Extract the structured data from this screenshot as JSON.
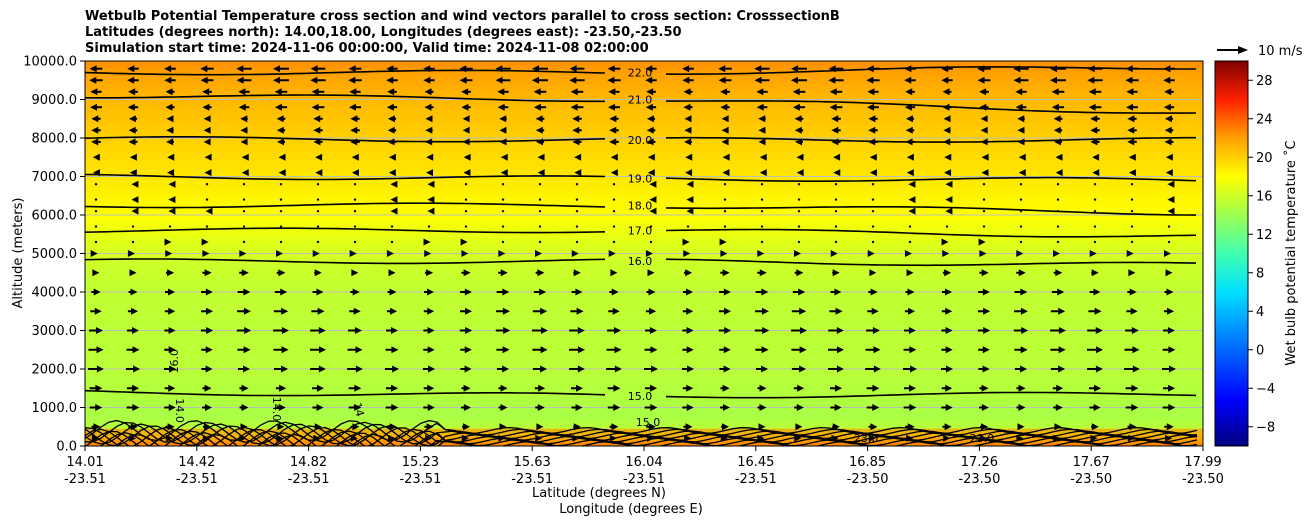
{
  "chart_data": {
    "type": "heatmap",
    "title_lines": [
      "Wetbulb Potential Temperature cross section and wind vectors parallel to cross section: CrosssectionB",
      "Latitudes (degrees north): 14.00,18.00, Longitudes (degrees east): -23.50,-23.50",
      "Simulation start time: 2024-11-06 00:00:00, Valid time: 2024-11-08 02:00:00"
    ],
    "ylabel": "Altitude (meters)",
    "xlabel_lines": [
      "Latitude (degrees N)",
      "Longitude (degrees E)"
    ],
    "ylim": [
      0,
      10000
    ],
    "y_ticks": [
      {
        "value": 0,
        "label": "0.0"
      },
      {
        "value": 1000,
        "label": "1000.0"
      },
      {
        "value": 2000,
        "label": "2000.0"
      },
      {
        "value": 3000,
        "label": "3000.0"
      },
      {
        "value": 4000,
        "label": "4000.0"
      },
      {
        "value": 5000,
        "label": "5000.0"
      },
      {
        "value": 6000,
        "label": "6000.0"
      },
      {
        "value": 7000,
        "label": "7000.0"
      },
      {
        "value": 8000,
        "label": "8000.0"
      },
      {
        "value": 9000,
        "label": "9000.0"
      },
      {
        "value": 10000,
        "label": "10000.0"
      }
    ],
    "x_ticks": [
      {
        "lat": "14.01",
        "lon": "-23.51"
      },
      {
        "lat": "14.42",
        "lon": "-23.51"
      },
      {
        "lat": "14.82",
        "lon": "-23.51"
      },
      {
        "lat": "15.23",
        "lon": "-23.51"
      },
      {
        "lat": "15.63",
        "lon": "-23.51"
      },
      {
        "lat": "16.04",
        "lon": "-23.51"
      },
      {
        "lat": "16.45",
        "lon": "-23.51"
      },
      {
        "lat": "16.85",
        "lon": "-23.50"
      },
      {
        "lat": "17.26",
        "lon": "-23.50"
      },
      {
        "lat": "17.67",
        "lon": "-23.50"
      },
      {
        "lat": "17.99",
        "lon": "-23.50"
      }
    ],
    "colorbar": {
      "label": "Wet bulb potential temperature ˚C",
      "range": [
        -10,
        30
      ],
      "ticks": [
        "−8",
        "−4",
        "0",
        "4",
        "8",
        "12",
        "16",
        "20",
        "24",
        "28"
      ],
      "tick_values": [
        -8,
        -4,
        0,
        4,
        8,
        12,
        16,
        20,
        24,
        28
      ]
    },
    "quiver_key": {
      "label": "10 m/s"
    },
    "temperature_profile": [
      {
        "alt": 0,
        "t": 23
      },
      {
        "alt": 150,
        "t": 20
      },
      {
        "alt": 300,
        "t": 17
      },
      {
        "alt": 500,
        "t": 15
      },
      {
        "alt": 800,
        "t": 14.5
      },
      {
        "alt": 1200,
        "t": 14.8
      },
      {
        "alt": 2000,
        "t": 15.2
      },
      {
        "alt": 3000,
        "t": 15.3
      },
      {
        "alt": 4000,
        "t": 15.5
      },
      {
        "alt": 4800,
        "t": 16
      },
      {
        "alt": 5400,
        "t": 17
      },
      {
        "alt": 6000,
        "t": 18
      },
      {
        "alt": 7000,
        "t": 19
      },
      {
        "alt": 8000,
        "t": 20
      },
      {
        "alt": 9000,
        "t": 21
      },
      {
        "alt": 9700,
        "t": 22
      },
      {
        "alt": 10000,
        "t": 22.6
      }
    ],
    "contours": [
      {
        "level": "22.0",
        "label_alt": 9700,
        "alt_left": 9700,
        "alt_right": 9850
      },
      {
        "level": "21.0",
        "label_alt": 9000,
        "alt_left": 9100,
        "alt_right": 8650
      },
      {
        "level": "20.0",
        "label_alt": 7950,
        "alt_left": 7980,
        "alt_right": 7950
      },
      {
        "level": "19.0",
        "label_alt": 6950,
        "alt_left": 7000,
        "alt_right": 6900
      },
      {
        "level": "18.0",
        "label_alt": 6250,
        "alt_left": 6250,
        "alt_right": 6050
      },
      {
        "level": "17.0",
        "label_alt": 5600,
        "alt_left": 5600,
        "alt_right": 5450
      },
      {
        "level": "16.0",
        "label_alt": 4800,
        "alt_left": 4800,
        "alt_right": 4700
      },
      {
        "level": "15.0",
        "label_alt": 1300,
        "alt_left": 1400,
        "alt_right": 1350
      }
    ],
    "inline_labels": [
      "16.0",
      "14.0",
      "14.0",
      "14",
      "15.0",
      "23.0",
      "23.0"
    ],
    "wind_rows": [
      {
        "alt": 9800,
        "u": -5
      },
      {
        "alt": 9500,
        "u": -5
      },
      {
        "alt": 9200,
        "u": -4
      },
      {
        "alt": 8800,
        "u": -4
      },
      {
        "alt": 8500,
        "u": -3
      },
      {
        "alt": 8200,
        "u": -3
      },
      {
        "alt": 7900,
        "u": -3
      },
      {
        "alt": 7500,
        "u": -2
      },
      {
        "alt": 7100,
        "u": -2
      },
      {
        "alt": 6800,
        "u": -1
      },
      {
        "alt": 6400,
        "u": -1
      },
      {
        "alt": 6100,
        "u": -1
      },
      {
        "alt": 5700,
        "u": 0.5
      },
      {
        "alt": 5300,
        "u": 1
      },
      {
        "alt": 5000,
        "u": 1.5
      },
      {
        "alt": 4500,
        "u": 3
      },
      {
        "alt": 4000,
        "u": 4
      },
      {
        "alt": 3500,
        "u": 4.5
      },
      {
        "alt": 3000,
        "u": 5
      },
      {
        "alt": 2500,
        "u": 5
      },
      {
        "alt": 2000,
        "u": 5
      },
      {
        "alt": 1500,
        "u": 4
      },
      {
        "alt": 1000,
        "u": 4
      },
      {
        "alt": 500,
        "u": 3
      },
      {
        "alt": 200,
        "u": 2
      }
    ]
  }
}
